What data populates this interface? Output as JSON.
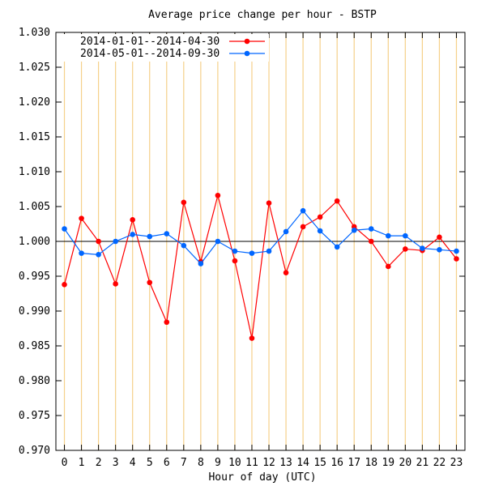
{
  "chart_data": {
    "type": "line",
    "title": "Average price change per hour - BSTP",
    "xlabel": "Hour of day (UTC)",
    "ylabel": "",
    "x": [
      0,
      1,
      2,
      3,
      4,
      5,
      6,
      7,
      8,
      9,
      10,
      11,
      12,
      13,
      14,
      15,
      16,
      17,
      18,
      19,
      20,
      21,
      22,
      23
    ],
    "x_tick_labels": [
      "0",
      "1",
      "2",
      "3",
      "4",
      "5",
      "6",
      "7",
      "8",
      "9",
      "10",
      "11",
      "12",
      "13",
      "14",
      "15",
      "16",
      "17",
      "18",
      "19",
      "20",
      "21",
      "22",
      "23"
    ],
    "xlim": [
      -0.5,
      23.5
    ],
    "ylim": [
      0.97,
      1.03
    ],
    "y_tick_labels": [
      "0.970",
      "0.975",
      "0.980",
      "0.985",
      "0.990",
      "0.995",
      "1.000",
      "1.005",
      "1.010",
      "1.015",
      "1.020",
      "1.025",
      "1.030"
    ],
    "y_ticks": [
      0.97,
      0.975,
      0.98,
      0.985,
      0.99,
      0.995,
      1.0,
      1.005,
      1.01,
      1.015,
      1.02,
      1.025,
      1.03
    ],
    "vertical_grid": true,
    "horizontal_reference_line": 1.0,
    "legend_position": "top-left",
    "series": [
      {
        "name": "2014-01-01--2014-04-30",
        "color": "#ff0000",
        "values": [
          0.9938,
          1.0033,
          1.0,
          0.9939,
          1.0031,
          0.9941,
          0.9884,
          1.0056,
          0.9971,
          1.0066,
          0.9972,
          0.9861,
          1.0055,
          0.9955,
          1.0021,
          1.0035,
          1.0058,
          1.0021,
          1.0,
          0.9964,
          0.9989,
          0.9987,
          1.0006,
          0.9975
        ]
      },
      {
        "name": "2014-05-01--2014-09-30",
        "color": "#0066ff",
        "values": [
          1.0018,
          0.9983,
          0.9981,
          1.0,
          1.001,
          1.0007,
          1.0011,
          0.9994,
          0.9968,
          1.0,
          0.9986,
          0.9983,
          0.9986,
          1.0014,
          1.0044,
          1.0015,
          0.9992,
          1.0016,
          1.0018,
          1.0008,
          1.0008,
          0.999,
          0.9988,
          0.9986
        ]
      }
    ]
  },
  "colors": {
    "grid": "#f5d08a",
    "axis": "#000000",
    "reference_line": "#000000"
  }
}
